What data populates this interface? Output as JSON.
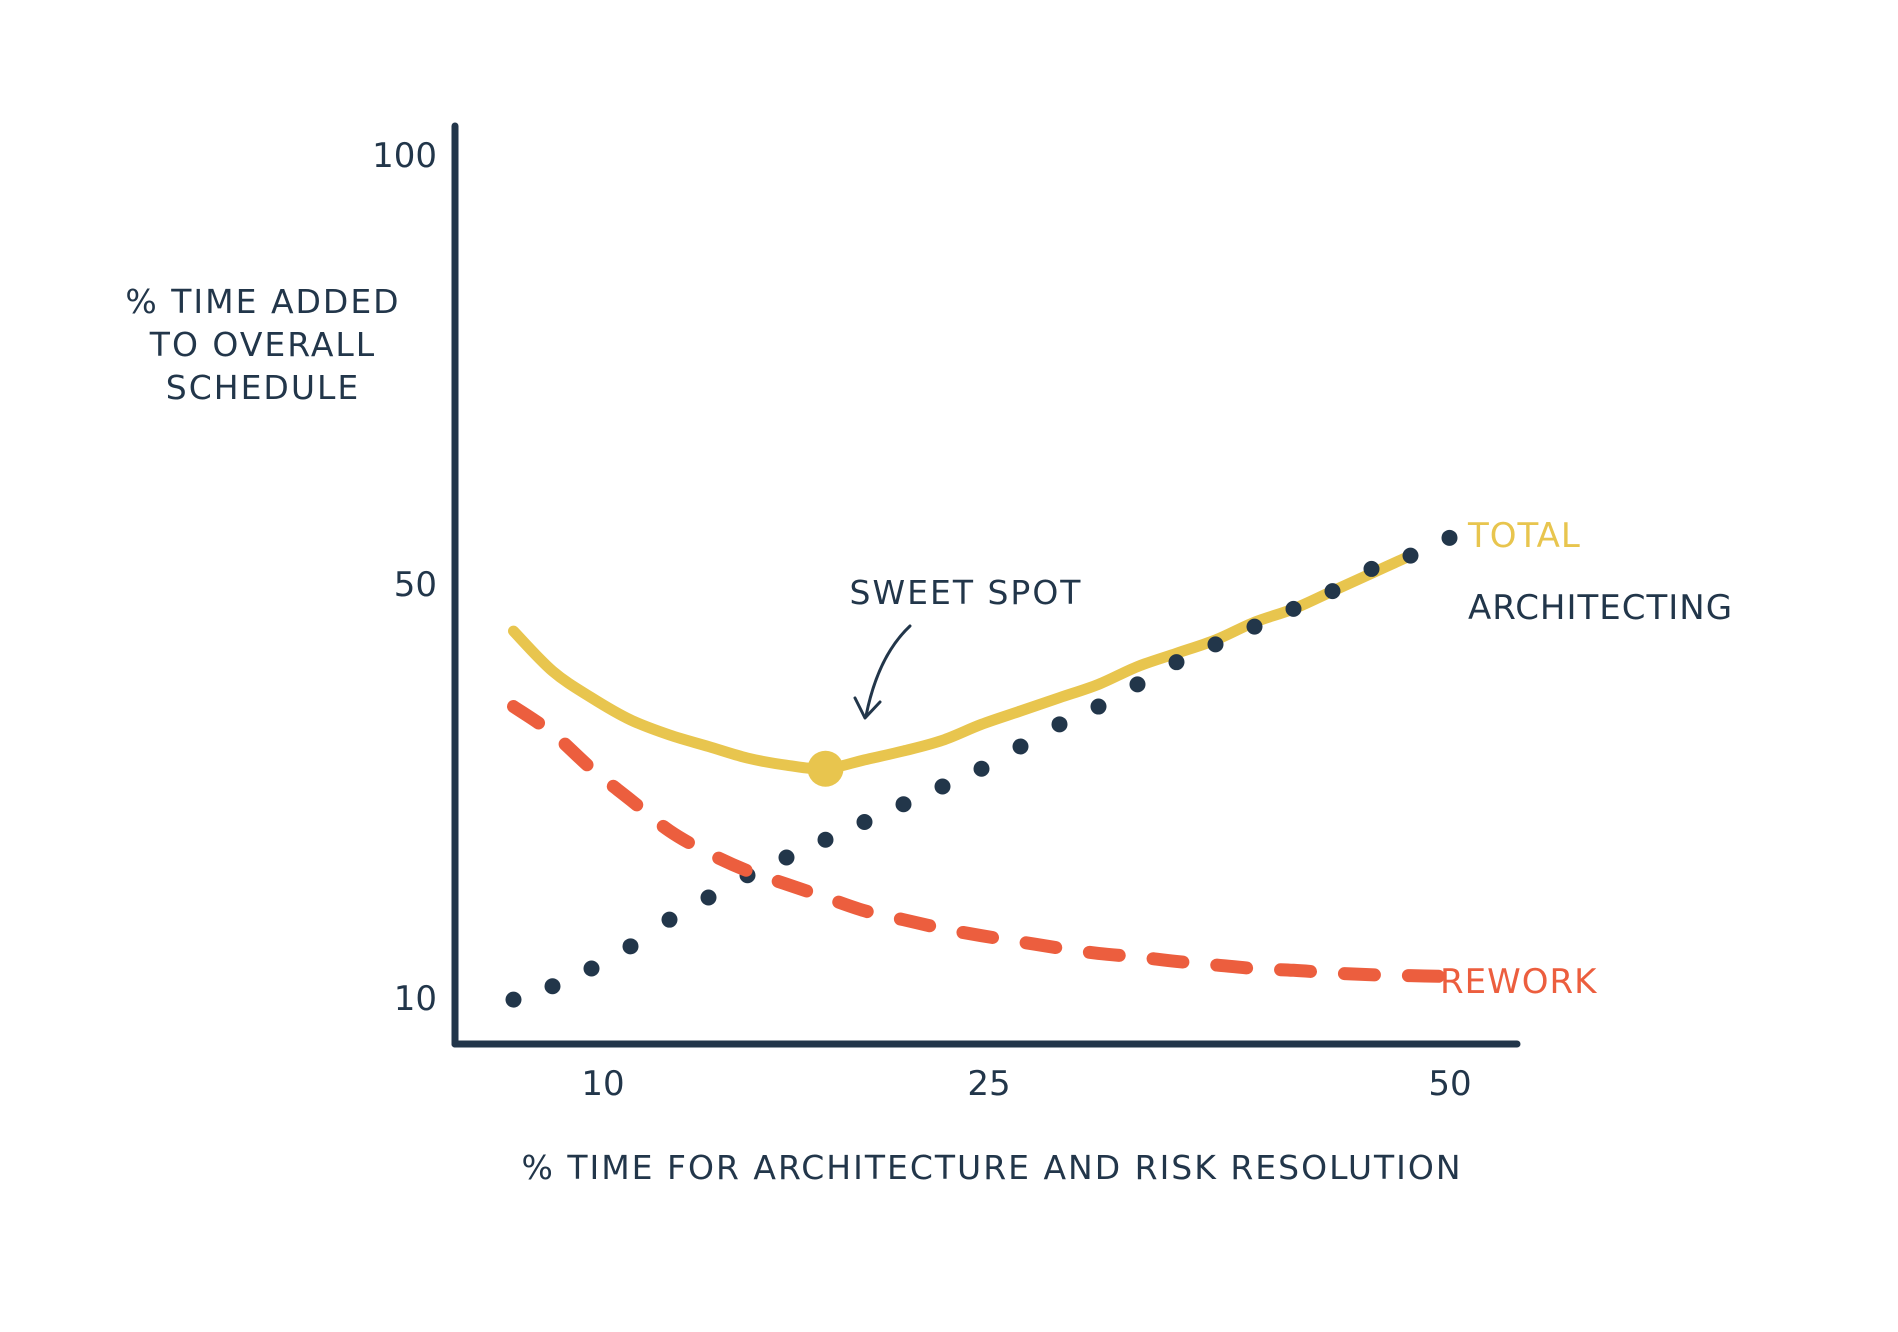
{
  "chart_data": {
    "type": "line",
    "title": "",
    "xlabel": "% TIME FOR ARCHITECTURE AND RISK RESOLUTION",
    "ylabel_lines": [
      "% TIME ADDED",
      "TO OVERALL",
      "SCHEDULE"
    ],
    "x_ticks": [
      "10",
      "25",
      "50"
    ],
    "y_ticks": [
      "100",
      "50",
      "10"
    ],
    "grid": false,
    "series": [
      {
        "name": "TOTAL",
        "style": "solid",
        "color": "#e8c54e",
        "x": [
          3,
          5,
          7,
          9,
          11,
          13,
          15,
          17,
          19,
          21,
          23,
          25,
          27,
          29,
          31,
          33,
          35,
          37,
          39,
          41,
          43,
          45,
          47,
          49
        ],
        "y": [
          46.5,
          42,
          39,
          36.5,
          34.8,
          33.5,
          32.2,
          31.4,
          31,
          32,
          33,
          34.2,
          36,
          37.5,
          39,
          40.5,
          42.5,
          44,
          45.5,
          47.5,
          49,
          51,
          53,
          55
        ]
      },
      {
        "name": "ARCHITECTING",
        "style": "dotted",
        "color": "#22364a",
        "x": [
          3,
          5,
          7,
          9,
          11,
          13,
          15,
          17,
          19,
          21,
          23,
          25,
          27,
          29,
          31,
          33,
          35,
          37,
          39,
          41,
          43,
          45,
          47,
          49,
          51
        ],
        "y": [
          5,
          6.5,
          8.5,
          11,
          14,
          16.5,
          19,
          21,
          23,
          25,
          27,
          29,
          31,
          33.5,
          36,
          38,
          40.5,
          43,
          45,
          47,
          49,
          51,
          53.5,
          55,
          57
        ]
      },
      {
        "name": "REWORK",
        "style": "dashed",
        "color": "#ec5e3e",
        "x": [
          3,
          5,
          7,
          9,
          11,
          13,
          15,
          17,
          19,
          21,
          23,
          25,
          27,
          29,
          31,
          33,
          35,
          37,
          39,
          41,
          43,
          45,
          47,
          49,
          51
        ],
        "y": [
          38,
          35,
          31,
          27.5,
          24,
          21.5,
          19.5,
          18,
          16.5,
          15,
          14,
          13,
          12.2,
          11.5,
          10.8,
          10.2,
          9.8,
          9.3,
          8.9,
          8.5,
          8.3,
          8,
          7.8,
          7.7,
          7.6
        ]
      }
    ],
    "highlight_point": {
      "label": "SWEET SPOT",
      "x": 19,
      "y": 31
    }
  }
}
